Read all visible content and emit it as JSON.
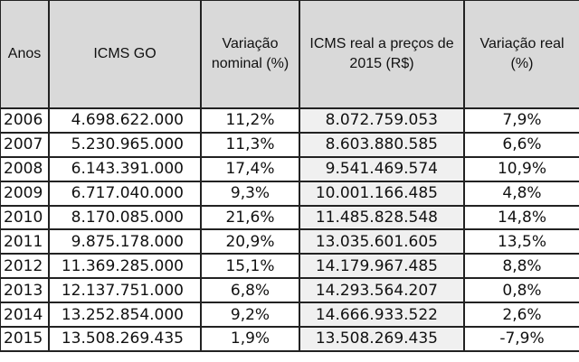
{
  "headers": [
    "Anos",
    "ICMS GO",
    "Variação nominal (%)",
    "ICMS  real  a preços de 2015 (R$)",
    "Variação real (%)"
  ],
  "rows": [
    [
      "2006",
      "4.698.622.000",
      "11,2%",
      "8.072.759.053",
      "7,9%"
    ],
    [
      "2007",
      "5.230.965.000",
      "11,3%",
      "8.603.880.585",
      "6,6%"
    ],
    [
      "2008",
      "6.143.391.000",
      "17,4%",
      "9.541.469.574",
      "10,9%"
    ],
    [
      "2009",
      "6.717.040.000",
      "9,3%",
      "10.001.166.485",
      "4,8%"
    ],
    [
      "2010",
      "8.170.085.000",
      "21,6%",
      "11.485.828.548",
      "14,8%"
    ],
    [
      "2011",
      "9.875.178.000",
      "20,9%",
      "13.035.601.605",
      "13,5%"
    ],
    [
      "2012",
      "11.369.285.000",
      "15,1%",
      "14.179.967.485",
      "8,8%"
    ],
    [
      "2013",
      "12.137.751.000",
      "6,8%",
      "14.293.564.207",
      "0,8%"
    ],
    [
      "2014",
      "13.252.854.000",
      "9,2%",
      "14.666.933.522",
      "2,6%"
    ],
    [
      "2015",
      "13.508.269.435",
      "1,9%",
      "13.508.269.435",
      "-7,9%"
    ]
  ]
}
